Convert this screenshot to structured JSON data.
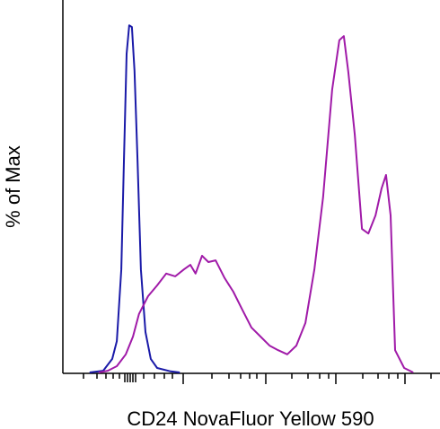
{
  "chart_data": {
    "type": "line",
    "xlabel": "CD24 NovaFluor Yellow 590",
    "ylabel": "% of Max",
    "xlim": [
      0,
      100
    ],
    "ylim": [
      0,
      100
    ],
    "series": [
      {
        "color": "#1a1aa8",
        "x": [
          7.1,
          10.7,
          13.1,
          14.3,
          15.5,
          16.2,
          16.9,
          17.6,
          18.3,
          19.0,
          19.8,
          20.7,
          21.9,
          23.3,
          25.0,
          28.6,
          31.0
        ],
        "values": [
          0,
          0.5,
          3.9,
          9.0,
          29.6,
          60.6,
          91.5,
          99.7,
          99.2,
          86.6,
          60.6,
          29.6,
          11.6,
          3.9,
          1.3,
          0.3,
          0
        ]
      },
      {
        "color": "#a01aa8",
        "x": [
          9.5,
          11.9,
          14.3,
          16.7,
          18.6,
          20.2,
          22.6,
          25.0,
          27.4,
          29.8,
          32.1,
          33.8,
          35.2,
          36.9,
          38.6,
          40.5,
          42.9,
          45.2,
          47.6,
          50.0,
          52.4,
          54.8,
          57.1,
          59.5,
          61.9,
          64.3,
          66.7,
          69.0,
          71.4,
          73.3,
          74.5,
          75.7,
          77.4,
          79.3,
          81.0,
          82.9,
          84.5,
          85.7,
          86.9,
          88.1,
          90.5,
          92.9
        ],
        "values": [
          0,
          0.5,
          1.8,
          5.2,
          10.3,
          16.8,
          21.9,
          25.0,
          28.4,
          27.6,
          29.6,
          30.9,
          28.4,
          33.5,
          31.7,
          32.2,
          27.1,
          23.2,
          18.0,
          12.9,
          10.3,
          7.7,
          6.4,
          5.2,
          7.7,
          14.2,
          29.6,
          50.3,
          81.2,
          95.4,
          96.6,
          86.3,
          68.3,
          41.2,
          39.9,
          45.1,
          52.8,
          56.7,
          45.1,
          6.4,
          1.3,
          0
        ]
      }
    ]
  }
}
